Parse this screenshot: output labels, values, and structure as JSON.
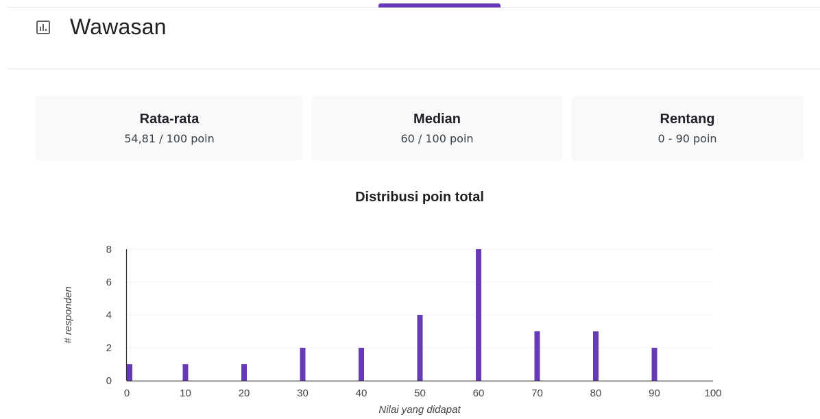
{
  "header": {
    "title": "Wawasan",
    "icon": "bar-chart-icon"
  },
  "stats": [
    {
      "label": "Rata-rata",
      "value": "54,81 / 100 poin"
    },
    {
      "label": "Median",
      "value": "60 / 100 poin"
    },
    {
      "label": "Rentang",
      "value": "0 - 90 poin"
    }
  ],
  "colors": {
    "accent": "#673ab7",
    "bar": "#673ab7",
    "grid": "#ececec",
    "card": "#f8f9fa"
  },
  "chart_data": {
    "type": "bar",
    "title": "Distribusi poin total",
    "xlabel": "Nilai yang didapat",
    "ylabel": "# responden",
    "x": [
      0,
      10,
      20,
      30,
      40,
      50,
      60,
      70,
      80,
      90
    ],
    "values": [
      1,
      1,
      1,
      2,
      2,
      4,
      8,
      3,
      3,
      2
    ],
    "xlim": [
      0,
      100
    ],
    "ylim": [
      0,
      8
    ],
    "xticks": [
      0,
      10,
      20,
      30,
      40,
      50,
      60,
      70,
      80,
      90,
      100
    ],
    "yticks": [
      0,
      2,
      4,
      6,
      8
    ],
    "grid": true,
    "legend": "none"
  }
}
